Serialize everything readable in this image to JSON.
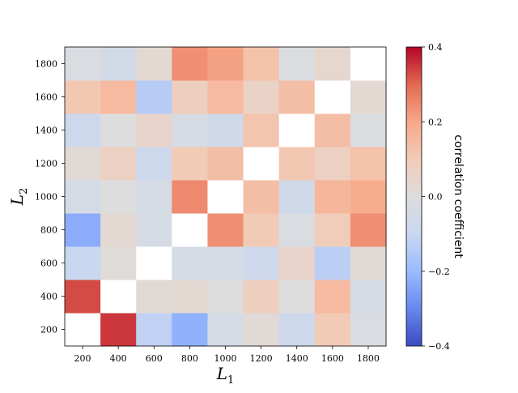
{
  "chart_data": {
    "type": "heatmap",
    "title": "",
    "xlabel": "L",
    "xlabel_sub": "1",
    "ylabel": "L",
    "ylabel_sub": "2",
    "x_categories": [
      "200",
      "400",
      "600",
      "800",
      "1000",
      "1200",
      "1400",
      "1600",
      "1800"
    ],
    "y_categories": [
      "200",
      "400",
      "600",
      "800",
      "1000",
      "1200",
      "1400",
      "1600",
      "1800"
    ],
    "values": [
      [
        null,
        0.35,
        -0.12,
        -0.22,
        -0.04,
        0.02,
        -0.08,
        0.1,
        -0.02
      ],
      [
        0.33,
        null,
        0.02,
        0.03,
        0.0,
        0.08,
        0.0,
        0.15,
        -0.04
      ],
      [
        -0.1,
        0.01,
        null,
        -0.04,
        -0.04,
        -0.08,
        0.05,
        -0.13,
        0.02
      ],
      [
        -0.23,
        0.03,
        -0.04,
        null,
        0.24,
        0.1,
        -0.02,
        0.09,
        0.24
      ],
      [
        -0.04,
        0.0,
        -0.04,
        0.25,
        null,
        0.14,
        -0.07,
        0.16,
        0.19
      ],
      [
        0.02,
        0.07,
        -0.08,
        0.1,
        0.14,
        null,
        0.11,
        0.07,
        0.13
      ],
      [
        -0.08,
        0.0,
        0.05,
        -0.03,
        -0.07,
        0.12,
        null,
        0.14,
        -0.01
      ],
      [
        0.11,
        0.15,
        -0.14,
        0.08,
        0.15,
        0.06,
        0.14,
        null,
        0.03
      ],
      [
        -0.02,
        -0.05,
        0.03,
        0.24,
        0.21,
        0.13,
        -0.01,
        0.04,
        null
      ]
    ],
    "missing_color": "#ffffff",
    "colorbar": {
      "label": "correlation coefficient",
      "min": -0.4,
      "max": 0.4,
      "ticks": [
        {
          "value": 0.4,
          "label": "0.4"
        },
        {
          "value": 0.2,
          "label": "0.2"
        },
        {
          "value": 0.0,
          "label": "0.0"
        },
        {
          "value": -0.2,
          "label": "−0.2"
        },
        {
          "value": -0.4,
          "label": "−0.4"
        }
      ],
      "colormap": "coolwarm",
      "stops": [
        "#3b4cc0",
        "#6788ee",
        "#9abbff",
        "#c9d7f0",
        "#dddddd",
        "#f2cbb7",
        "#f7a889",
        "#e26952",
        "#b40426"
      ]
    }
  }
}
